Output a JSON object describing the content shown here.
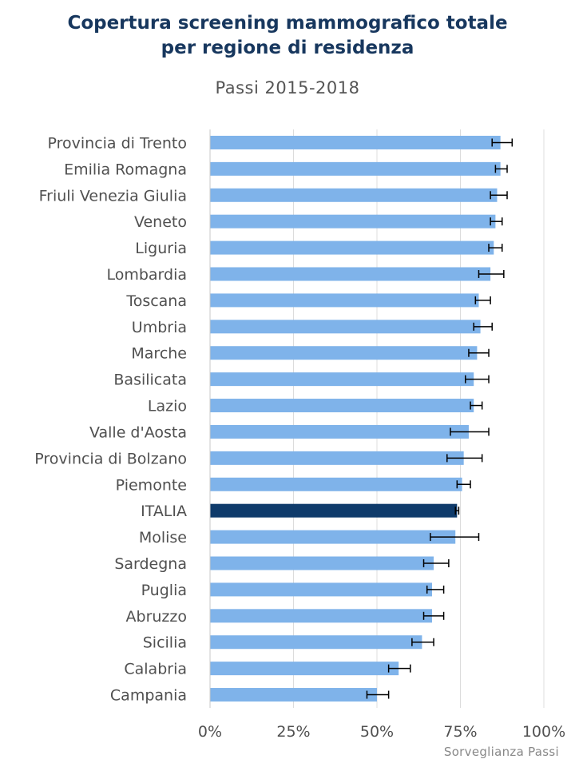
{
  "title_line1": "Copertura screening mammografico totale",
  "title_line2": "per regione di residenza",
  "subtitle": "Passi 2015-2018",
  "credit": "Sorveglianza Passi",
  "colors": {
    "bar": "#7fb3ea",
    "highlight": "#0f3b6b",
    "title": "#17375e",
    "grid": "#dcdcdc"
  },
  "chart_data": {
    "type": "bar",
    "orientation": "horizontal",
    "title": "Copertura screening mammografico totale per regione di residenza",
    "subtitle": "Passi 2015-2018",
    "xlim": [
      0,
      100
    ],
    "x_ticks": [
      0,
      25,
      50,
      75,
      100
    ],
    "x_tick_labels": [
      "0%",
      "25%",
      "50%",
      "75%",
      "100%"
    ],
    "highlight_category": "ITALIA",
    "categories": [
      "Provincia di Trento",
      "Emilia Romagna",
      "Friuli Venezia Giulia",
      "Veneto",
      "Liguria",
      "Lombardia",
      "Toscana",
      "Umbria",
      "Marche",
      "Basilicata",
      "Lazio",
      "Valle d'Aosta",
      "Provincia di Bolzano",
      "Piemonte",
      "ITALIA",
      "Molise",
      "Sardegna",
      "Puglia",
      "Abruzzo",
      "Sicilia",
      "Calabria",
      "Campania"
    ],
    "values": [
      87,
      87,
      86,
      85.5,
      85,
      84,
      80.5,
      81,
      80,
      79,
      79,
      77.5,
      76,
      75.5,
      74,
      73.5,
      67,
      66.5,
      66.5,
      63.5,
      56.5,
      50
    ],
    "ci_low": [
      84.5,
      85.5,
      84,
      84,
      83.5,
      80.5,
      79.5,
      79,
      77.5,
      76.5,
      78,
      72,
      71,
      74,
      73.5,
      66,
      64,
      65,
      64,
      60.5,
      53.5,
      47
    ],
    "ci_high": [
      90.5,
      89,
      89,
      87.5,
      87.5,
      88,
      84,
      84.5,
      83.5,
      83.5,
      81.5,
      83.5,
      81.5,
      78,
      74.5,
      80.5,
      71.5,
      70,
      70,
      67,
      60,
      53.5
    ]
  }
}
